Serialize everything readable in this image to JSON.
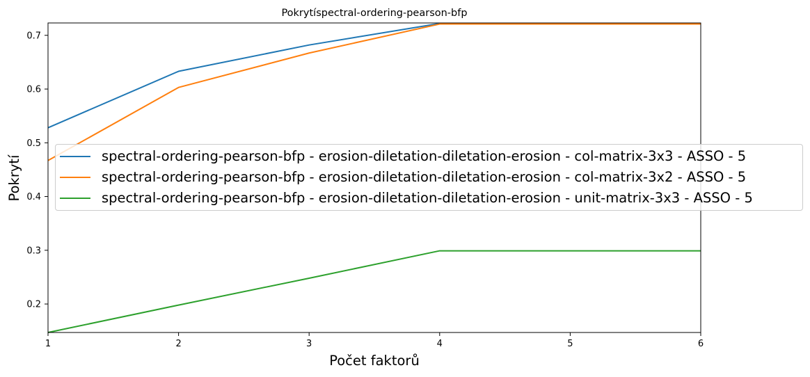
{
  "chart_data": {
    "type": "line",
    "title": "Pokrytíspectral-ordering-pearson-bfp",
    "xlabel": "Počet faktorů",
    "ylabel": "Pokrytí",
    "x": [
      1,
      2,
      3,
      4,
      5,
      6
    ],
    "xlim": [
      1,
      6
    ],
    "ylim": [
      0.147,
      0.723
    ],
    "xticks": [
      "1",
      "2",
      "3",
      "4",
      "5",
      "6"
    ],
    "yticks": [
      {
        "value": 0.2,
        "label": "0.2"
      },
      {
        "value": 0.3,
        "label": "0.3"
      },
      {
        "value": 0.4,
        "label": "0.4"
      },
      {
        "value": 0.5,
        "label": "0.5"
      },
      {
        "value": 0.6,
        "label": "0.6"
      },
      {
        "value": 0.7,
        "label": "0.7"
      }
    ],
    "grid": false,
    "legend_position": "center-right",
    "series": [
      {
        "name": "spectral-ordering-pearson-bfp - erosion-diletation-diletation-erosion - col-matrix-3x3 - ASSO - 5",
        "color": "#1f77b4",
        "values": [
          0.528,
          0.633,
          0.682,
          0.722,
          0.722,
          0.722
        ]
      },
      {
        "name": "spectral-ordering-pearson-bfp - erosion-diletation-diletation-erosion - col-matrix-3x2 - ASSO - 5",
        "color": "#ff7f0e",
        "values": [
          0.467,
          0.603,
          0.667,
          0.721,
          0.721,
          0.721
        ]
      },
      {
        "name": "spectral-ordering-pearson-bfp - erosion-diletation-diletation-erosion - unit-matrix-3x3 - ASSO - 5",
        "color": "#2ca02c",
        "values": [
          0.147,
          0.198,
          0.248,
          0.299,
          0.299,
          0.299
        ]
      }
    ]
  }
}
